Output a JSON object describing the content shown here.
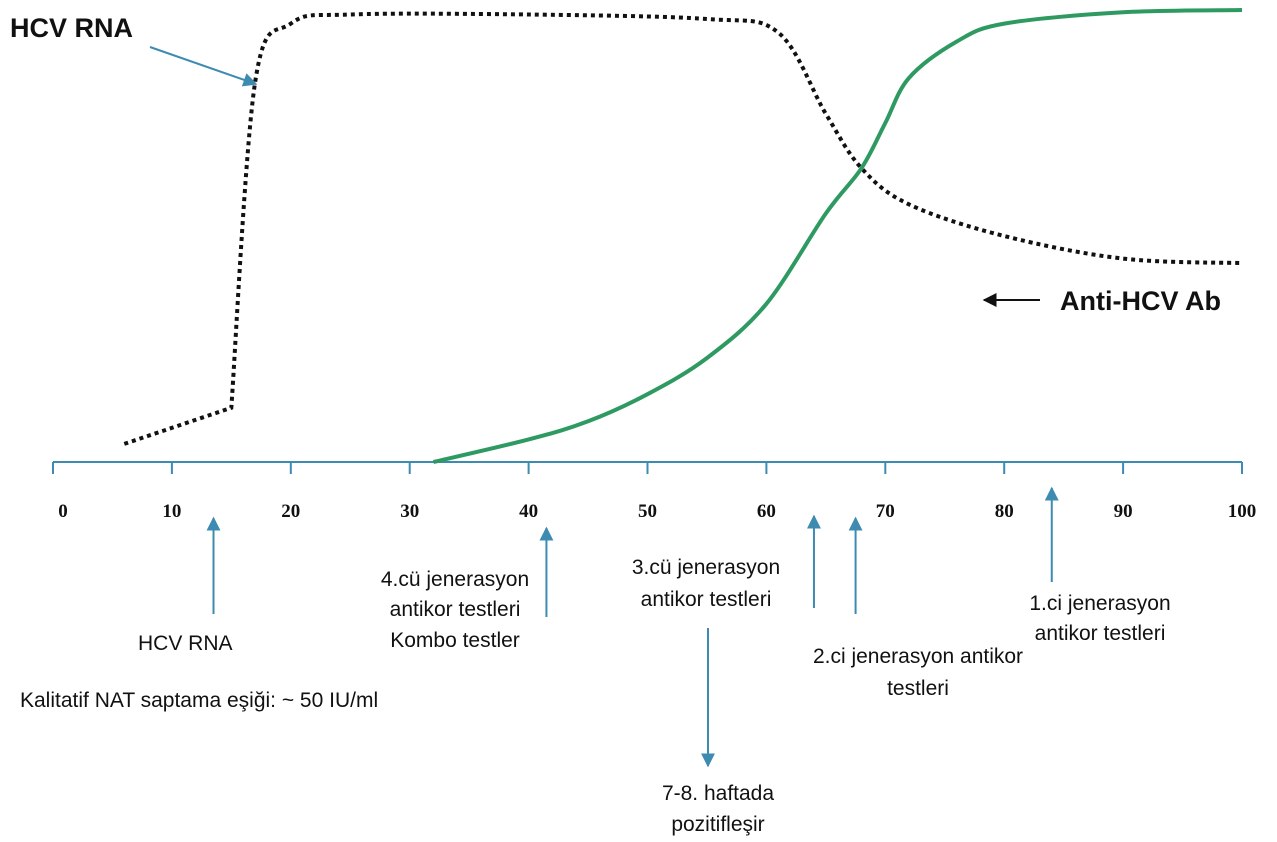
{
  "colors": {
    "axis": "#3d8bb1",
    "rna": "#111111",
    "antibody": "#2e9a62",
    "pointer": "#3d8bb1",
    "text": "#111111"
  },
  "chart_data": {
    "type": "line",
    "title": "",
    "xlabel": "",
    "ylabel": "",
    "xlim": [
      0,
      100
    ],
    "ylim": [
      0,
      100
    ],
    "x_ticks": [
      0,
      10,
      20,
      30,
      40,
      50,
      60,
      70,
      80,
      90,
      100
    ],
    "grid": false,
    "series": [
      {
        "name": "HCV RNA",
        "style": "dotted",
        "points": [
          [
            6,
            4
          ],
          [
            15,
            12
          ],
          [
            17,
            84
          ],
          [
            20,
            97
          ],
          [
            25,
            99
          ],
          [
            40,
            99
          ],
          [
            55,
            98
          ],
          [
            61,
            95
          ],
          [
            65,
            77
          ],
          [
            68,
            65
          ],
          [
            72,
            57
          ],
          [
            80,
            50
          ],
          [
            90,
            45
          ],
          [
            100,
            44
          ]
        ]
      },
      {
        "name": "Anti-HCV Ab",
        "style": "solid",
        "points": [
          [
            32,
            0
          ],
          [
            40,
            5
          ],
          [
            45,
            9
          ],
          [
            50,
            15
          ],
          [
            55,
            23
          ],
          [
            60,
            35
          ],
          [
            65,
            55
          ],
          [
            68,
            65
          ],
          [
            70,
            75
          ],
          [
            72,
            85
          ],
          [
            76,
            93
          ],
          [
            80,
            97
          ],
          [
            90,
            99.5
          ],
          [
            100,
            100
          ]
        ]
      }
    ],
    "labels": {
      "rna_label": "HCV RNA",
      "ab_label": "Anti-HCV Ab"
    },
    "markers": [
      {
        "id": "hcv-rna",
        "x": 13.5,
        "direction": "up",
        "lines": [
          "HCV RNA"
        ]
      },
      {
        "id": "gen4",
        "x": 41.5,
        "direction": "up",
        "lines": [
          "4.cü jenerasyon",
          "antikor testleri",
          "Kombo testler"
        ]
      },
      {
        "id": "gen3",
        "x": 64,
        "direction": "up",
        "lines": [
          "3.cü jenerasyon",
          "antikor testleri"
        ]
      },
      {
        "id": "gen2",
        "x": 67.5,
        "direction": "up",
        "lines": [
          "2.ci jenerasyon antikor",
          "testleri"
        ]
      },
      {
        "id": "gen1",
        "x": 84,
        "direction": "up",
        "lines": [
          "1.ci jenerasyon",
          "antikor testleri"
        ]
      }
    ],
    "notes": {
      "threshold": "Kalitatif NAT saptama eşiği: ~ 50 IU/ml",
      "positive": [
        "7-8. haftada",
        "pozitifleşir"
      ]
    }
  }
}
